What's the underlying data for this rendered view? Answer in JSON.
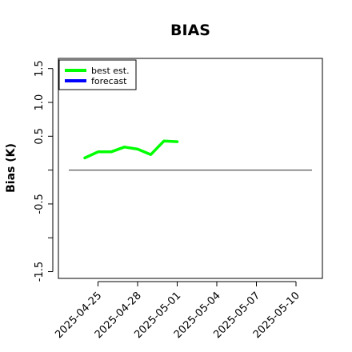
{
  "chart_data": {
    "type": "line",
    "title": "BIAS",
    "xlabel": "",
    "ylabel": "Bias (K)",
    "xlim": [
      "2025-04-22",
      "2025-05-12"
    ],
    "ylim": [
      -1.6,
      1.65
    ],
    "yticks": [
      -1.5,
      -1.0,
      -0.5,
      0.0,
      0.5,
      1.0,
      1.5
    ],
    "ytick_labels": [
      "-1.5",
      "",
      "-0.5",
      "",
      "0.5",
      "1.0",
      "1.5"
    ],
    "xticks": [
      "2025-04-25",
      "2025-04-28",
      "2025-05-01",
      "2025-05-04",
      "2025-05-07",
      "2025-05-10"
    ],
    "xtick_labels": [
      "2025-04-25",
      "2025-04-28",
      "2025-05-01",
      "2025-05-04",
      "2025-05-07",
      "2025-05-10"
    ],
    "highlight_xtick": "2025-05-01",
    "highlight_color": "#228b22",
    "zero_line": 0.0,
    "zero_line_color": "#555555",
    "legend_position": "top-left",
    "grid": false,
    "series": [
      {
        "name": "best est.",
        "color": "#00ff00",
        "x": [
          "2025-04-24",
          "2025-04-25",
          "2025-04-26",
          "2025-04-27",
          "2025-04-28",
          "2025-04-29",
          "2025-04-30",
          "2025-05-01"
        ],
        "values": [
          0.18,
          0.27,
          0.27,
          0.34,
          0.31,
          0.23,
          0.43,
          0.42
        ]
      },
      {
        "name": "forecast",
        "color": "#0000ff",
        "x": [],
        "values": []
      }
    ]
  }
}
